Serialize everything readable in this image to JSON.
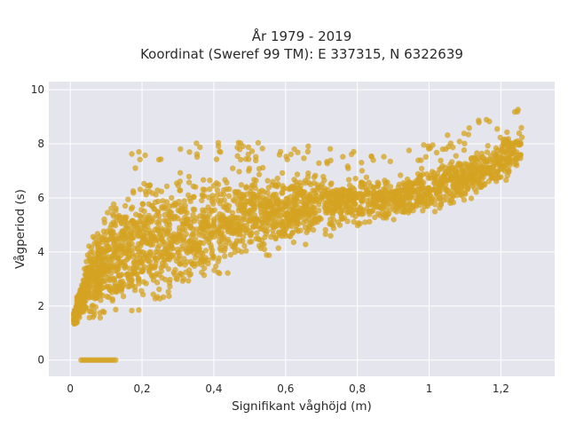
{
  "chart_data": {
    "type": "scatter",
    "title_line1": "År 1979 - 2019",
    "title_line2": "Koordinat (Sweref 99 TM): E 337315, N 6322639",
    "xlabel": "Signifikant våghöjd (m)",
    "ylabel": "Vågperiod (s)",
    "xlim": [
      -0.06,
      1.35
    ],
    "ylim": [
      -0.6,
      10.3
    ],
    "x_ticks": [
      0,
      0.2,
      0.4,
      0.6,
      0.8,
      1,
      1.2
    ],
    "x_tick_labels": [
      "0",
      "0,2",
      "0,4",
      "0,6",
      "0,8",
      "1",
      "1,2"
    ],
    "y_ticks": [
      0,
      2,
      4,
      6,
      8,
      10
    ],
    "y_tick_labels": [
      "0",
      "2",
      "4",
      "6",
      "8",
      "10"
    ],
    "grid": true,
    "legend": "none",
    "colors": {
      "marker": "#D4A321",
      "plot_bg": "#E5E5EE",
      "grid": "#ffffff"
    },
    "series": [
      {
        "description_envelope": [
          {
            "x": 0.01,
            "y_min": 1.2,
            "y_max": 1.9
          },
          {
            "x": 0.05,
            "y_min": 1.1,
            "y_max": 4.6
          },
          {
            "x": 0.1,
            "y_min": 1.1,
            "y_max": 6.2
          },
          {
            "x": 0.15,
            "y_min": 1.15,
            "y_max": 6.8
          },
          {
            "x": 0.2,
            "y_min": 1.3,
            "y_max": 7.2
          },
          {
            "x": 0.3,
            "y_min": 1.6,
            "y_max": 7.3
          },
          {
            "x": 0.4,
            "y_min": 2.4,
            "y_max": 7.4
          },
          {
            "x": 0.5,
            "y_min": 3.4,
            "y_max": 7.4
          },
          {
            "x": 0.6,
            "y_min": 3.8,
            "y_max": 7.3
          },
          {
            "x": 0.7,
            "y_min": 4.3,
            "y_max": 7.2
          },
          {
            "x": 0.8,
            "y_min": 4.7,
            "y_max": 7.0
          },
          {
            "x": 0.9,
            "y_min": 5.0,
            "y_max": 7.0
          },
          {
            "x": 1.0,
            "y_min": 5.3,
            "y_max": 7.4
          },
          {
            "x": 1.1,
            "y_min": 5.6,
            "y_max": 8.0
          },
          {
            "x": 1.2,
            "y_min": 6.1,
            "y_max": 8.5
          },
          {
            "x": 1.26,
            "y_min": 7.0,
            "y_max": 9.0
          }
        ],
        "zero_points_x_range": [
          0.03,
          0.13
        ]
      }
    ]
  }
}
